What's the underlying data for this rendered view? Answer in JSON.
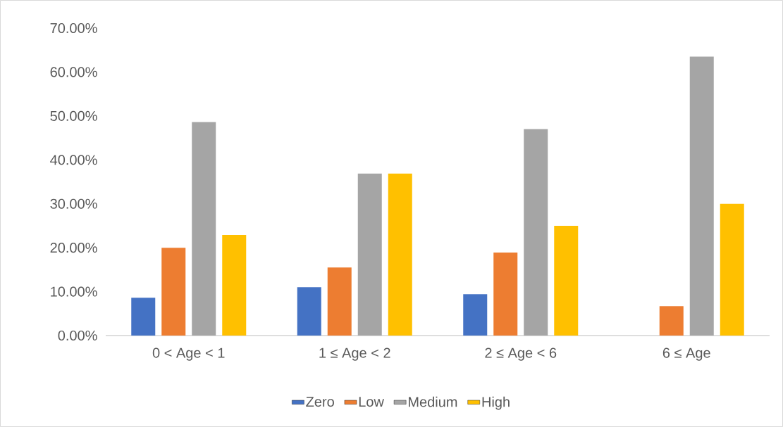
{
  "chart_data": {
    "type": "bar",
    "categories": [
      "0 < Age < 1",
      "1 ≤ Age < 2",
      "2 ≤ Age < 6",
      "6 ≤ Age"
    ],
    "series": [
      {
        "name": "Zero",
        "color": "#4472c4",
        "values": [
          8.6,
          11.0,
          9.4,
          0
        ]
      },
      {
        "name": "Low",
        "color": "#ed7d31",
        "values": [
          20.0,
          15.5,
          18.9,
          6.7
        ]
      },
      {
        "name": "Medium",
        "color": "#a5a5a5",
        "values": [
          48.6,
          36.9,
          47.0,
          63.5
        ]
      },
      {
        "name": "High",
        "color": "#ffc000",
        "values": [
          22.9,
          36.9,
          25.0,
          30.0
        ]
      }
    ],
    "ylim": [
      0,
      70
    ],
    "yticks": [
      {
        "value": 0,
        "label": "0.00%"
      },
      {
        "value": 10,
        "label": "10.00%"
      },
      {
        "value": 20,
        "label": "20.00%"
      },
      {
        "value": 30,
        "label": "30.00%"
      },
      {
        "value": 40,
        "label": "40.00%"
      },
      {
        "value": 50,
        "label": "50.00%"
      },
      {
        "value": 60,
        "label": "60.00%"
      },
      {
        "value": 70,
        "label": "70.00%"
      }
    ],
    "legend": "bottom"
  }
}
